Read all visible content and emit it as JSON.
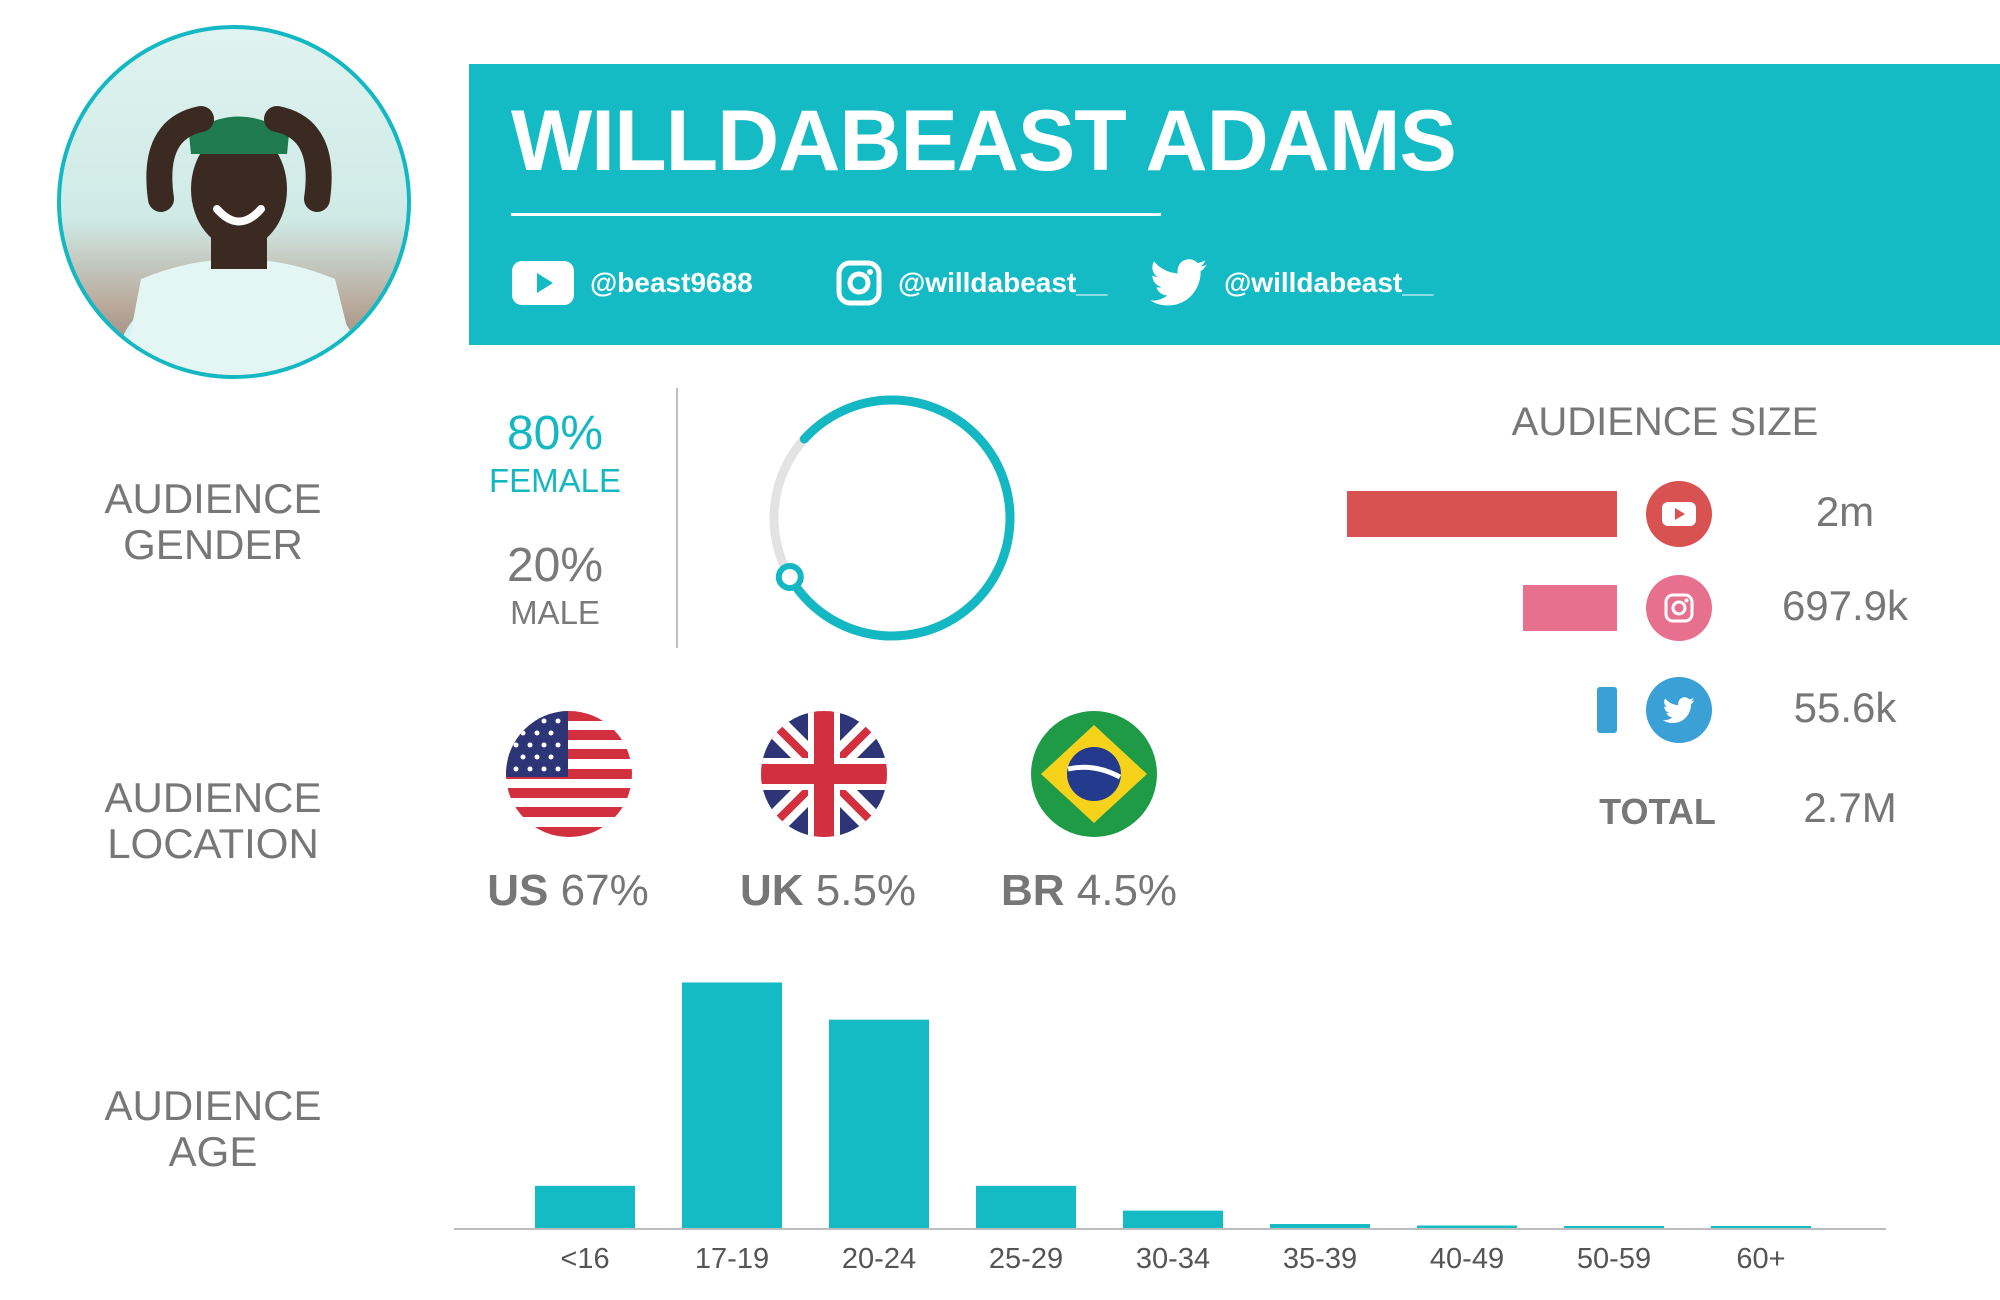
{
  "profile": {
    "name": "WILLDABEAST ADAMS",
    "avatar_icon": "person-photo-icon",
    "handles": [
      {
        "platform": "youtube",
        "icon": "youtube-icon",
        "handle": "@beast9688"
      },
      {
        "platform": "instagram",
        "icon": "instagram-icon",
        "handle": "@willdabeast__"
      },
      {
        "platform": "twitter",
        "icon": "twitter-icon",
        "handle": "@willdabeast__"
      }
    ]
  },
  "gender": {
    "label_line1": "AUDIENCE",
    "label_line2": "GENDER",
    "female_pct": "80%",
    "female_label": "FEMALE",
    "male_pct": "20%",
    "male_label": "MALE",
    "female_fraction": 0.8
  },
  "location": {
    "label_line1": "AUDIENCE",
    "label_line2": "LOCATION",
    "countries": [
      {
        "code": "US",
        "pct": "67%",
        "flag_icon": "us-flag-icon"
      },
      {
        "code": "UK",
        "pct": "5.5%",
        "flag_icon": "uk-flag-icon"
      },
      {
        "code": "BR",
        "pct": "4.5%",
        "flag_icon": "brazil-flag-icon"
      }
    ]
  },
  "audience_size": {
    "title": "AUDIENCE SIZE",
    "rows": [
      {
        "platform": "youtube",
        "icon": "youtube-icon",
        "value": "2m",
        "amount": 2000000,
        "color": "#d95252"
      },
      {
        "platform": "instagram",
        "icon": "instagram-icon",
        "value": "697.9k",
        "amount": 697900,
        "color": "#e8708f"
      },
      {
        "platform": "twitter",
        "icon": "twitter-icon",
        "value": "55.6k",
        "amount": 55600,
        "color": "#3aa0d5"
      }
    ],
    "total_label": "TOTAL",
    "total_value": "2.7M"
  },
  "age": {
    "label_line1": "AUDIENCE",
    "label_line2": "AGE"
  },
  "chart_data": {
    "type": "bar",
    "categories": [
      "<16",
      "17-19",
      "20-24",
      "25-29",
      "30-34",
      "35-39",
      "40-49",
      "50-59",
      "60+"
    ],
    "values": [
      8.5,
      49.5,
      42,
      8.5,
      3.5,
      0.8,
      0.5,
      0.3,
      0.3
    ],
    "ylim": [
      0,
      50
    ],
    "grid": false,
    "title": "",
    "xlabel": "",
    "ylabel": ""
  },
  "colors": {
    "accent": "#14bac4",
    "ring_track": "#e3e3e3",
    "youtube": "#d95252",
    "instagram": "#e8708f",
    "twitter": "#3aa0d5"
  }
}
